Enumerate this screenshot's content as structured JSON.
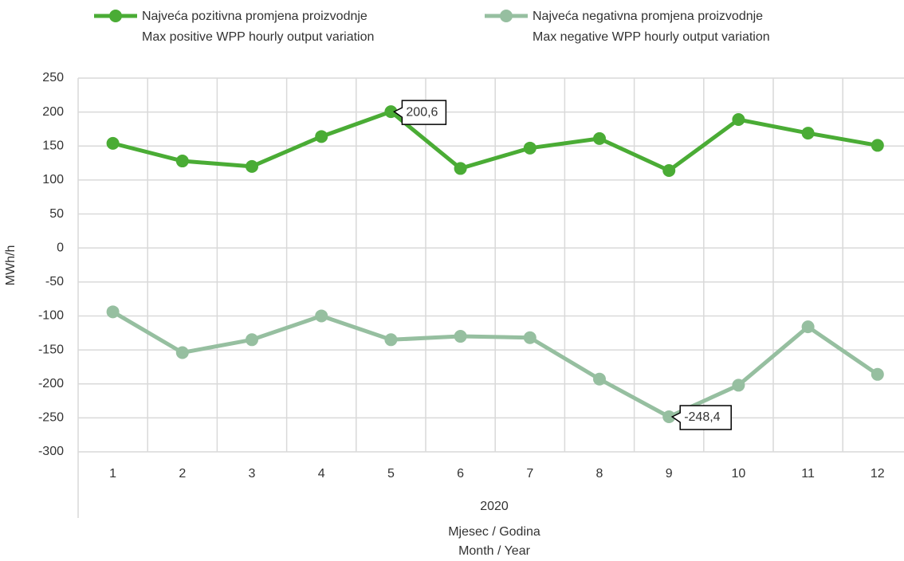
{
  "chart_data": {
    "type": "line",
    "ylabel": "MWh/h",
    "categories": [
      "1",
      "2",
      "3",
      "4",
      "5",
      "6",
      "7",
      "8",
      "9",
      "10",
      "11",
      "12"
    ],
    "x_group": "2020",
    "xlabel": [
      "Mjesec / Godina",
      "Month / Year"
    ],
    "series": [
      {
        "name": [
          "Najveća pozitivna promjena proizvodnje",
          "Max positive WPP hourly output variation"
        ],
        "color": "#4aac35",
        "values": [
          154,
          128,
          120,
          164,
          200.6,
          117,
          147,
          161,
          114,
          189,
          169,
          151
        ],
        "value_labels": [
          null,
          null,
          null,
          null,
          "200,6",
          null,
          null,
          null,
          null,
          null,
          null,
          null
        ]
      },
      {
        "name": [
          "Najveća negativna promjena proizvodnje",
          "Max negative WPP hourly output variation"
        ],
        "color": "#96bfa0",
        "values": [
          -94,
          -154,
          -135,
          -100,
          -135,
          -130,
          -132,
          -193,
          -248.4,
          -202,
          -116,
          -186
        ],
        "value_labels": [
          null,
          null,
          null,
          null,
          null,
          null,
          null,
          null,
          "-248,4",
          null,
          null,
          null
        ]
      }
    ],
    "ylim": [
      -300,
      250
    ],
    "yticks": [
      -300,
      -250,
      -200,
      -150,
      -100,
      -50,
      0,
      50,
      100,
      150,
      200,
      250
    ],
    "grid": true
  }
}
